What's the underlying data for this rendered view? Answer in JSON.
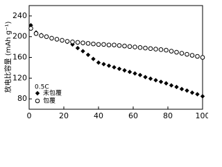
{
  "chart_data": {
    "type": "scatter",
    "ylabel": "放电比容量 (mAh g⁻¹)",
    "annotation": "0.5C",
    "x": [
      1,
      4,
      7,
      10,
      13,
      16,
      19,
      22,
      25,
      28,
      31,
      34,
      37,
      40,
      43,
      46,
      49,
      52,
      55,
      58,
      61,
      64,
      67,
      70,
      73,
      76,
      79,
      82,
      85,
      88,
      91,
      94,
      97,
      100
    ],
    "series": [
      {
        "name": "未包覆",
        "color": "#000000",
        "marker": "diamond",
        "values": [
          222,
          208,
          203,
          200,
          197,
          195,
          193,
          190,
          185,
          178,
          172,
          165,
          157,
          150,
          147,
          144,
          141,
          138,
          135,
          132,
          129,
          126,
          122,
          119,
          116,
          113,
          110,
          106,
          103,
          99,
          96,
          92,
          89,
          85
        ]
      },
      {
        "name": "包覆",
        "color": "#000000",
        "marker": "circle",
        "values": [
          216,
          206,
          202,
          200,
          197,
          195,
          193,
          191,
          190,
          189,
          188,
          187,
          186,
          185,
          185,
          184,
          184,
          183,
          182,
          181,
          180,
          179,
          178,
          177,
          176,
          175,
          174,
          172,
          170,
          168,
          166,
          164,
          162,
          160
        ]
      }
    ],
    "xlim": [
      0,
      100
    ],
    "xticks": [
      0,
      20,
      40,
      60,
      80,
      100
    ],
    "ylim": [
      60,
      260
    ],
    "yticks": [
      80,
      120,
      160,
      200,
      240
    ],
    "legend": "lower left"
  }
}
